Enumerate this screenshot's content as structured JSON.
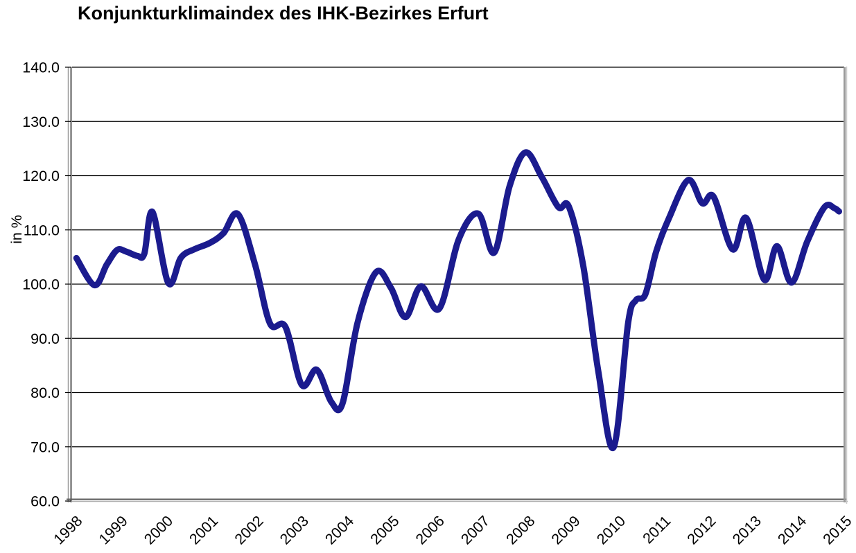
{
  "page": {
    "background_color": "#ffffff"
  },
  "chart_data": {
    "type": "line",
    "title": "Konjunkturklimaindex des IHK-Bezirkes Erfurt",
    "xlabel": "",
    "ylabel": "in %",
    "ylim": [
      60,
      140
    ],
    "ytick_interval": 10,
    "ytick_labels": [
      "140.0",
      "130.0",
      "120.0",
      "110.0",
      "100.0",
      "90.0",
      "80.0",
      "70.0",
      "60.0"
    ],
    "xlim": [
      1998,
      2015
    ],
    "xtick_labels": [
      "1998",
      "1999",
      "2000",
      "2001",
      "2002",
      "2003",
      "2004",
      "2005",
      "2006",
      "2007",
      "2008",
      "2009",
      "2010",
      "2011",
      "2012",
      "2013",
      "2014",
      "2015"
    ],
    "grid": "horizontal",
    "legend": "none",
    "line_color": "#1b1b8e",
    "line_width": 9,
    "gridline_color": "#000000",
    "frame_color": "#8c8c8c",
    "series": [
      {
        "name": "Konjunkturklimaindex",
        "x": [
          1998.05,
          1998.45,
          1998.72,
          1998.95,
          1999.15,
          1999.4,
          1999.55,
          1999.73,
          2000.08,
          2000.36,
          2000.65,
          2001.0,
          2001.3,
          2001.62,
          2002.0,
          2002.33,
          2002.67,
          2003.03,
          2003.36,
          2003.68,
          2003.93,
          2004.26,
          2004.67,
          2005.0,
          2005.32,
          2005.66,
          2006.07,
          2006.5,
          2006.93,
          2007.28,
          2007.62,
          2007.97,
          2008.33,
          2008.7,
          2008.93,
          2009.25,
          2009.58,
          2009.92,
          2010.24,
          2010.41,
          2010.62,
          2010.86,
          2011.15,
          2011.57,
          2011.88,
          2012.13,
          2012.55,
          2012.85,
          2013.25,
          2013.53,
          2013.85,
          2014.2,
          2014.58,
          2014.8,
          2014.9
        ],
        "y": [
          104.8,
          99.8,
          103.6,
          106.3,
          106.0,
          105.2,
          105.6,
          113.3,
          100.2,
          104.9,
          106.4,
          107.6,
          109.4,
          112.9,
          103.5,
          92.7,
          92.1,
          81.4,
          84.2,
          78.3,
          78.0,
          92.8,
          102.2,
          99.3,
          93.9,
          99.6,
          95.5,
          108.3,
          113.0,
          105.8,
          118.0,
          124.3,
          119.8,
          114.2,
          114.3,
          103.3,
          84.0,
          69.9,
          92.8,
          97.0,
          98.1,
          106.0,
          112.3,
          119.2,
          114.9,
          116.1,
          106.4,
          112.2,
          100.8,
          107.0,
          100.3,
          107.9,
          114.2,
          114.0,
          113.4
        ]
      }
    ]
  }
}
